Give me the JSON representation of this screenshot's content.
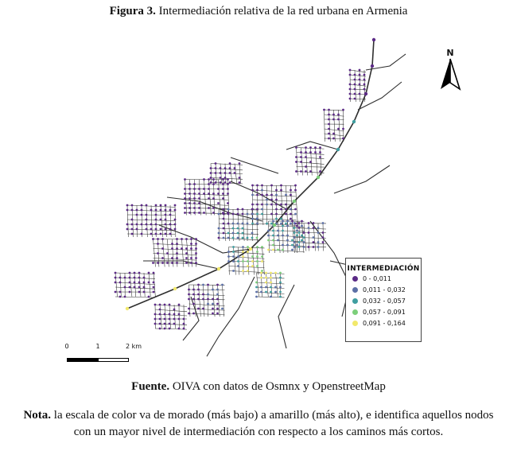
{
  "figure": {
    "label": "Figura 3.",
    "title": "Intermediación relativa de la red urbana en Armenia"
  },
  "map": {
    "north_label": "N",
    "scale_labels": [
      "0",
      "1",
      "2 km"
    ],
    "legend": {
      "title": "INTERMEDIACIÓN",
      "items": [
        {
          "label": "0 - 0,011",
          "color": "#5b2a86"
        },
        {
          "label": "0,011 - 0,032",
          "color": "#5c6fa6"
        },
        {
          "label": "0,032 - 0,057",
          "color": "#3f9ea0"
        },
        {
          "label": "0,057 - 0,091",
          "color": "#7ccf7a"
        },
        {
          "label": "0,091 - 0,164",
          "color": "#f2e96b"
        }
      ]
    },
    "colors": {
      "road": "#333333",
      "node_low": "#5b2a86",
      "node_mid": "#3f9ea0",
      "node_high": "#f2e96b"
    }
  },
  "source": {
    "label": "Fuente.",
    "text": "OIVA con datos de Osmnx y OpenstreetMap"
  },
  "note": {
    "label": "Nota.",
    "text": "la escala de color va de morado (más bajo) a amarillo (más alto), e identifica aquellos nodos con un mayor nivel de intermediación con respecto a los caminos más cortos."
  }
}
